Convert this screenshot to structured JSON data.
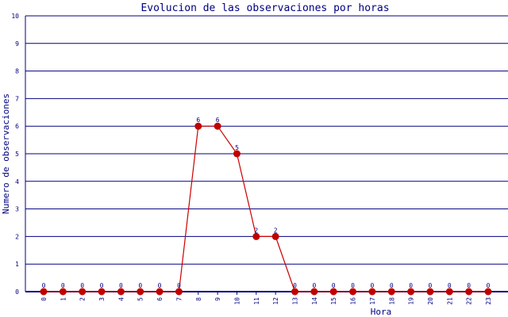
{
  "chart_data": {
    "type": "line",
    "title": "Evolucion de las observaciones por horas",
    "xlabel": "Hora",
    "ylabel": "Numero de observaciones",
    "categories": [
      "0",
      "1",
      "2",
      "3",
      "4",
      "5",
      "6",
      "7",
      "8",
      "9",
      "10",
      "11",
      "12",
      "13",
      "14",
      "15",
      "16",
      "17",
      "18",
      "19",
      "20",
      "21",
      "22",
      "23"
    ],
    "values": [
      0,
      0,
      0,
      0,
      0,
      0,
      0,
      0,
      6,
      6,
      5,
      2,
      2,
      0,
      0,
      0,
      0,
      0,
      0,
      0,
      0,
      0,
      0,
      0
    ],
    "ylim": [
      0,
      10
    ],
    "yticks": [
      0,
      1,
      2,
      3,
      4,
      5,
      6,
      7,
      8,
      9,
      10
    ],
    "grid": true,
    "data_labels": true,
    "colors": {
      "axis": "#000080",
      "line": "#cc0000",
      "marker": "#c00000"
    }
  }
}
